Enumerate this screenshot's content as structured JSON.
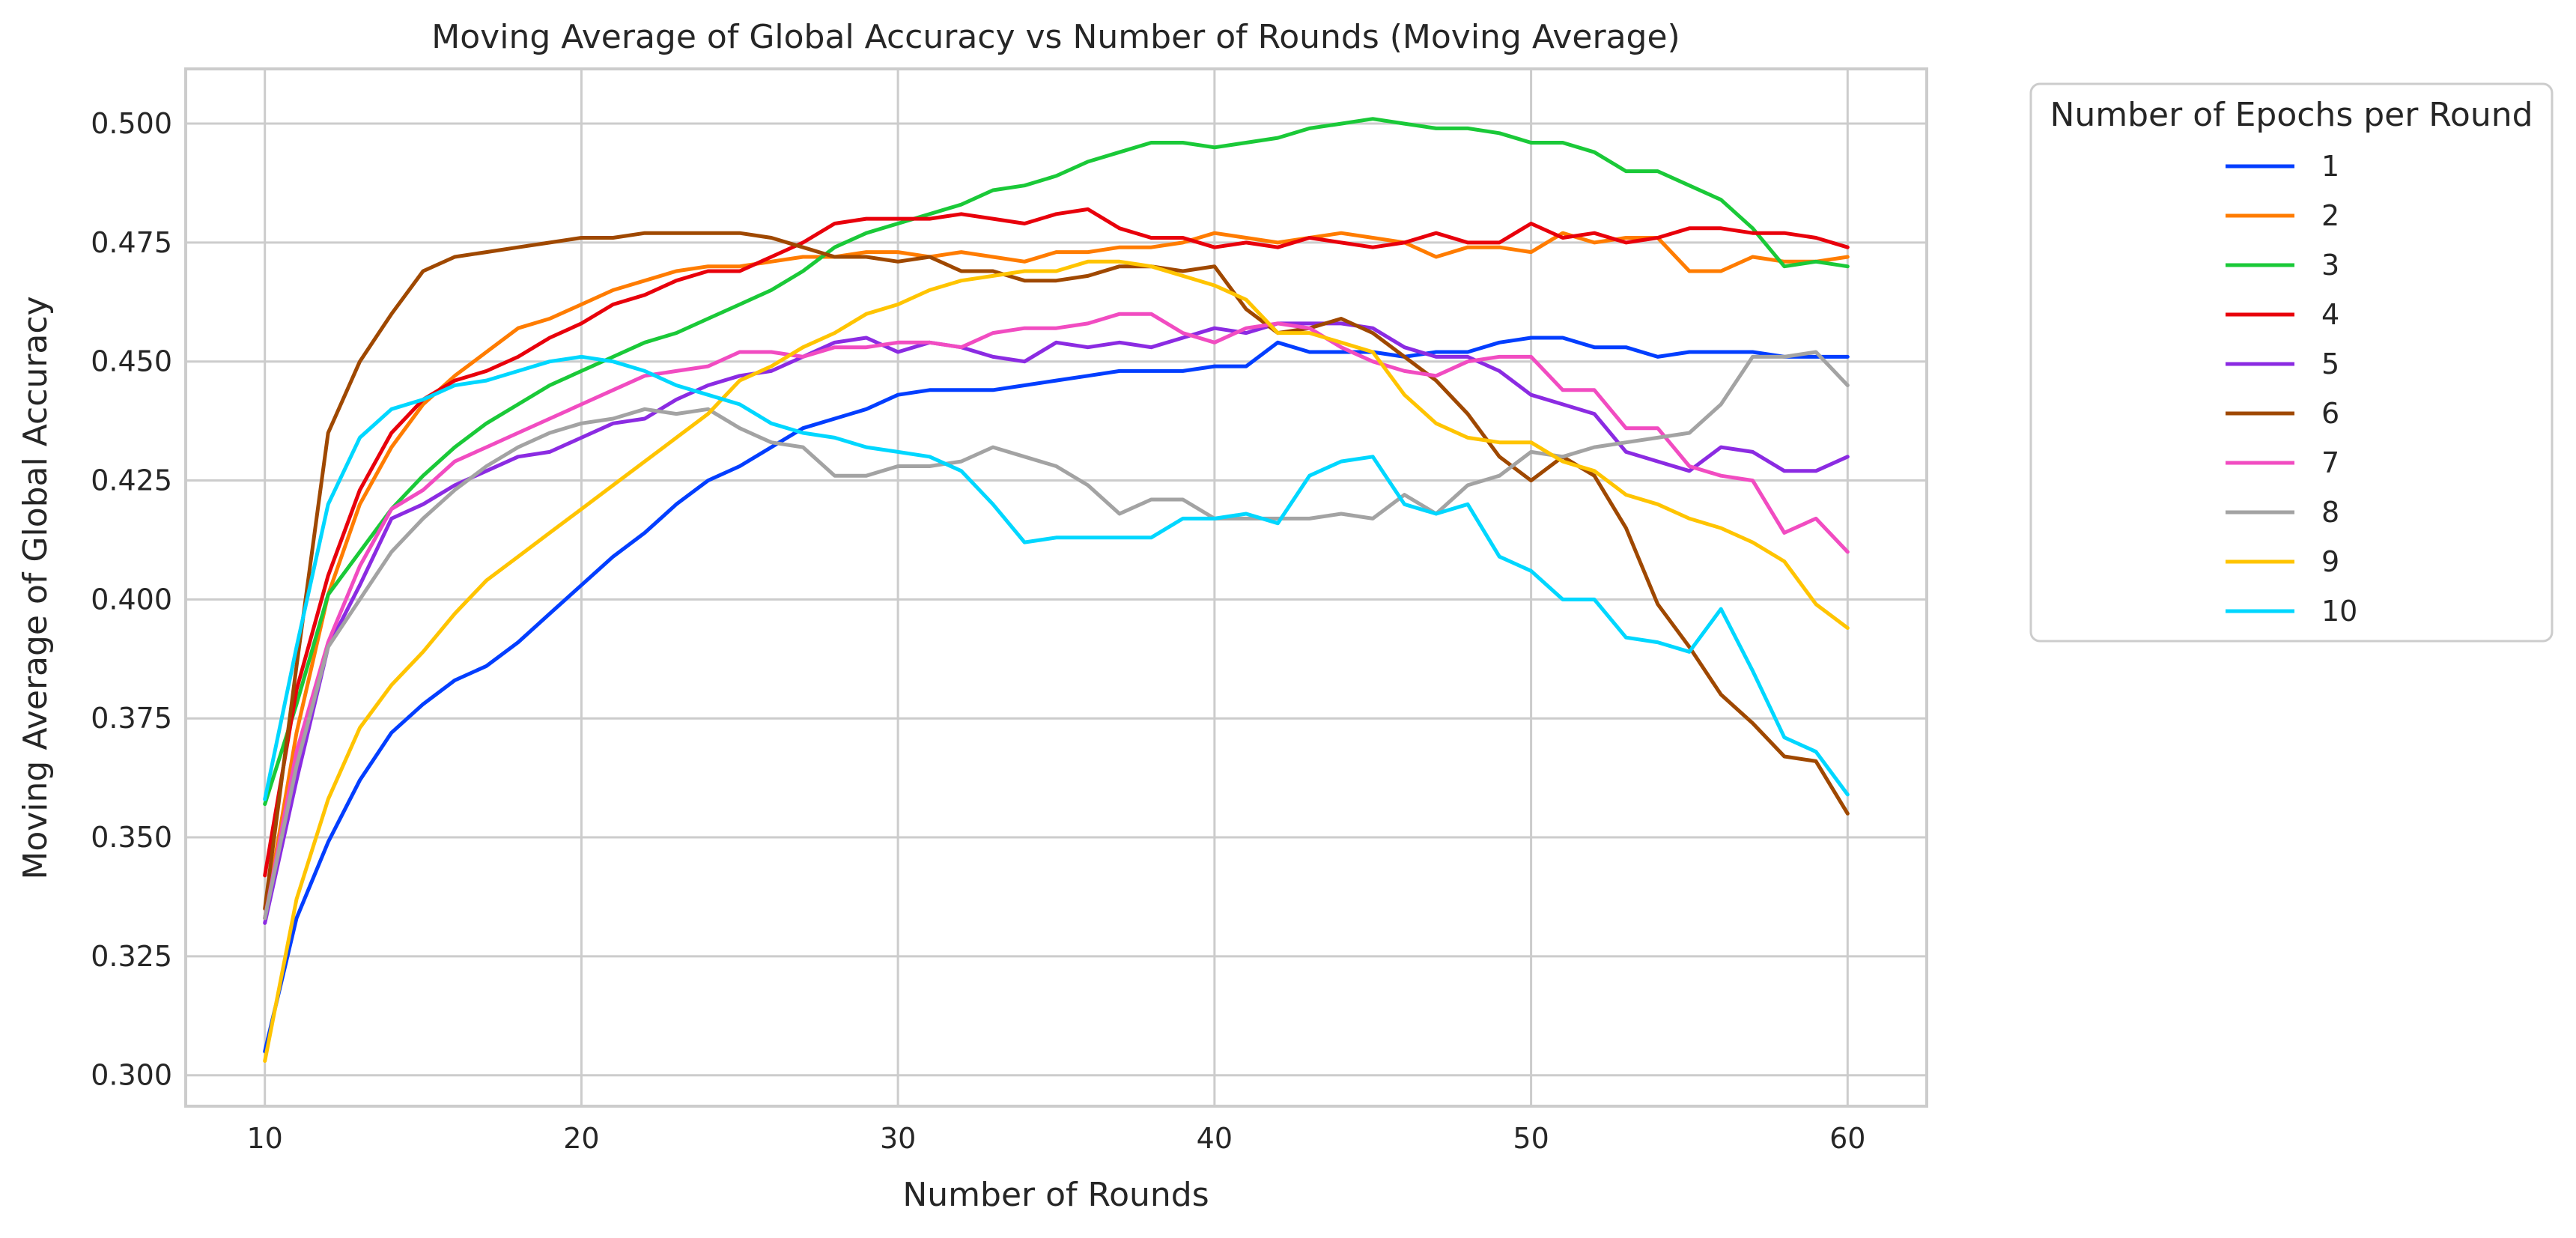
{
  "chart_data": {
    "type": "line",
    "title": "Moving Average of Global Accuracy vs Number of Rounds (Moving Average)",
    "xlabel": "Number of Rounds",
    "ylabel": "Moving Average of Global Accuracy",
    "xlim": [
      7.5,
      62.5
    ],
    "ylim": [
      0.2935,
      0.5115
    ],
    "xticks": [
      10,
      20,
      30,
      40,
      50,
      60
    ],
    "xtick_labels": [
      "10",
      "20",
      "30",
      "40",
      "50",
      "60"
    ],
    "yticks": [
      0.3,
      0.325,
      0.35,
      0.375,
      0.4,
      0.425,
      0.45,
      0.475,
      0.5
    ],
    "ytick_labels": [
      "0.300",
      "0.325",
      "0.350",
      "0.375",
      "0.400",
      "0.425",
      "0.450",
      "0.475",
      "0.500"
    ],
    "grid": true,
    "legend": {
      "title": "Number of Epochs per Round",
      "placement": "outside-upper-right"
    },
    "x": [
      10,
      11,
      12,
      13,
      14,
      15,
      16,
      17,
      18,
      19,
      20,
      21,
      22,
      23,
      24,
      25,
      26,
      27,
      28,
      29,
      30,
      31,
      32,
      33,
      34,
      35,
      36,
      37,
      38,
      39,
      40,
      41,
      42,
      43,
      44,
      45,
      46,
      47,
      48,
      49,
      50,
      51,
      52,
      53,
      54,
      55,
      56,
      57,
      58,
      59,
      60
    ],
    "series": [
      {
        "name": "1",
        "color": "#023eff",
        "values": [
          0.305,
          0.333,
          0.349,
          0.362,
          0.372,
          0.378,
          0.383,
          0.386,
          0.391,
          0.397,
          0.403,
          0.409,
          0.414,
          0.42,
          0.425,
          0.428,
          0.432,
          0.436,
          0.438,
          0.44,
          0.443,
          0.444,
          0.444,
          0.444,
          0.445,
          0.446,
          0.447,
          0.448,
          0.448,
          0.448,
          0.449,
          0.449,
          0.454,
          0.452,
          0.452,
          0.452,
          0.451,
          0.452,
          0.452,
          0.454,
          0.455,
          0.455,
          0.453,
          0.453,
          0.451,
          0.452,
          0.452,
          0.452,
          0.451,
          0.451,
          0.451
        ]
      },
      {
        "name": "2",
        "color": "#ff7c00",
        "values": [
          0.333,
          0.372,
          0.401,
          0.42,
          0.432,
          0.441,
          0.447,
          0.452,
          0.457,
          0.459,
          0.462,
          0.465,
          0.467,
          0.469,
          0.47,
          0.47,
          0.471,
          0.472,
          0.472,
          0.473,
          0.473,
          0.472,
          0.473,
          0.472,
          0.471,
          0.473,
          0.473,
          0.474,
          0.474,
          0.475,
          0.477,
          0.476,
          0.475,
          0.476,
          0.477,
          0.476,
          0.475,
          0.472,
          0.474,
          0.474,
          0.473,
          0.477,
          0.475,
          0.476,
          0.476,
          0.469,
          0.469,
          0.472,
          0.471,
          0.471,
          0.472
        ]
      },
      {
        "name": "3",
        "color": "#1ac938",
        "values": [
          0.357,
          0.378,
          0.401,
          0.41,
          0.419,
          0.426,
          0.432,
          0.437,
          0.441,
          0.445,
          0.448,
          0.451,
          0.454,
          0.456,
          0.459,
          0.462,
          0.465,
          0.469,
          0.474,
          0.477,
          0.479,
          0.481,
          0.483,
          0.486,
          0.487,
          0.489,
          0.492,
          0.494,
          0.496,
          0.496,
          0.495,
          0.496,
          0.497,
          0.499,
          0.5,
          0.501,
          0.5,
          0.499,
          0.499,
          0.498,
          0.496,
          0.496,
          0.494,
          0.49,
          0.49,
          0.487,
          0.484,
          0.478,
          0.47,
          0.471,
          0.47
        ]
      },
      {
        "name": "4",
        "color": "#e8000b",
        "values": [
          0.342,
          0.381,
          0.405,
          0.423,
          0.435,
          0.442,
          0.446,
          0.448,
          0.451,
          0.455,
          0.458,
          0.462,
          0.464,
          0.467,
          0.469,
          0.469,
          0.472,
          0.475,
          0.479,
          0.48,
          0.48,
          0.48,
          0.481,
          0.48,
          0.479,
          0.481,
          0.482,
          0.478,
          0.476,
          0.476,
          0.474,
          0.475,
          0.474,
          0.476,
          0.475,
          0.474,
          0.475,
          0.477,
          0.475,
          0.475,
          0.479,
          0.476,
          0.477,
          0.475,
          0.476,
          0.478,
          0.478,
          0.477,
          0.477,
          0.476,
          0.474
        ]
      },
      {
        "name": "5",
        "color": "#8b2be2",
        "values": [
          0.332,
          0.362,
          0.39,
          0.403,
          0.417,
          0.42,
          0.424,
          0.427,
          0.43,
          0.431,
          0.434,
          0.437,
          0.438,
          0.442,
          0.445,
          0.447,
          0.448,
          0.451,
          0.454,
          0.455,
          0.452,
          0.454,
          0.453,
          0.451,
          0.45,
          0.454,
          0.453,
          0.454,
          0.453,
          0.455,
          0.457,
          0.456,
          0.458,
          0.458,
          0.458,
          0.457,
          0.453,
          0.451,
          0.451,
          0.448,
          0.443,
          0.441,
          0.439,
          0.431,
          0.429,
          0.427,
          0.432,
          0.431,
          0.427,
          0.427,
          0.43
        ]
      },
      {
        "name": "6",
        "color": "#9f4800",
        "values": [
          0.335,
          0.386,
          0.435,
          0.45,
          0.46,
          0.469,
          0.472,
          0.473,
          0.474,
          0.475,
          0.476,
          0.476,
          0.477,
          0.477,
          0.477,
          0.477,
          0.476,
          0.474,
          0.472,
          0.472,
          0.471,
          0.472,
          0.469,
          0.469,
          0.467,
          0.467,
          0.468,
          0.47,
          0.47,
          0.469,
          0.47,
          0.461,
          0.456,
          0.457,
          0.459,
          0.456,
          0.451,
          0.446,
          0.439,
          0.43,
          0.425,
          0.43,
          0.426,
          0.415,
          0.399,
          0.39,
          0.38,
          0.374,
          0.367,
          0.366,
          0.355
        ]
      },
      {
        "name": "7",
        "color": "#f14cc1",
        "values": [
          0.333,
          0.368,
          0.391,
          0.407,
          0.419,
          0.423,
          0.429,
          0.432,
          0.435,
          0.438,
          0.441,
          0.444,
          0.447,
          0.448,
          0.449,
          0.452,
          0.452,
          0.451,
          0.453,
          0.453,
          0.454,
          0.454,
          0.453,
          0.456,
          0.457,
          0.457,
          0.458,
          0.46,
          0.46,
          0.456,
          0.454,
          0.457,
          0.458,
          0.457,
          0.453,
          0.45,
          0.448,
          0.447,
          0.45,
          0.451,
          0.451,
          0.444,
          0.444,
          0.436,
          0.436,
          0.428,
          0.426,
          0.425,
          0.414,
          0.417,
          0.41
        ]
      },
      {
        "name": "8",
        "color": "#a3a3a3",
        "values": [
          0.333,
          0.365,
          0.39,
          0.4,
          0.41,
          0.417,
          0.423,
          0.428,
          0.432,
          0.435,
          0.437,
          0.438,
          0.44,
          0.439,
          0.44,
          0.436,
          0.433,
          0.432,
          0.426,
          0.426,
          0.428,
          0.428,
          0.429,
          0.432,
          0.43,
          0.428,
          0.424,
          0.418,
          0.421,
          0.421,
          0.417,
          0.417,
          0.417,
          0.417,
          0.418,
          0.417,
          0.422,
          0.418,
          0.424,
          0.426,
          0.431,
          0.43,
          0.432,
          0.433,
          0.434,
          0.435,
          0.441,
          0.451,
          0.451,
          0.452,
          0.445
        ]
      },
      {
        "name": "9",
        "color": "#ffc400",
        "values": [
          0.303,
          0.337,
          0.358,
          0.373,
          0.382,
          0.389,
          0.397,
          0.404,
          0.409,
          0.414,
          0.419,
          0.424,
          0.429,
          0.434,
          0.439,
          0.446,
          0.449,
          0.453,
          0.456,
          0.46,
          0.462,
          0.465,
          0.467,
          0.468,
          0.469,
          0.469,
          0.471,
          0.471,
          0.47,
          0.468,
          0.466,
          0.463,
          0.456,
          0.456,
          0.454,
          0.452,
          0.443,
          0.437,
          0.434,
          0.433,
          0.433,
          0.429,
          0.427,
          0.422,
          0.42,
          0.417,
          0.415,
          0.412,
          0.408,
          0.399,
          0.394
        ]
      },
      {
        "name": "10",
        "color": "#00d7ff",
        "values": [
          0.358,
          0.39,
          0.42,
          0.434,
          0.44,
          0.442,
          0.445,
          0.446,
          0.448,
          0.45,
          0.451,
          0.45,
          0.448,
          0.445,
          0.443,
          0.441,
          0.437,
          0.435,
          0.434,
          0.432,
          0.431,
          0.43,
          0.427,
          0.42,
          0.412,
          0.413,
          0.413,
          0.413,
          0.413,
          0.417,
          0.417,
          0.418,
          0.416,
          0.426,
          0.429,
          0.43,
          0.42,
          0.418,
          0.42,
          0.409,
          0.406,
          0.4,
          0.4,
          0.392,
          0.391,
          0.389,
          0.398,
          0.385,
          0.371,
          0.368,
          0.359
        ]
      }
    ]
  }
}
